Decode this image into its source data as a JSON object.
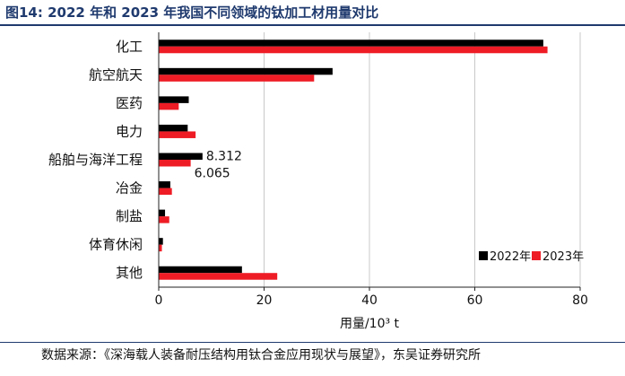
{
  "figure": {
    "title": "图14:  2022 年和 2023 年我国不同领域的钛加工材用量对比",
    "source": "数据来源：《深海载人装备耐压结构用钛合金应用现状与展望》，东吴证券研究所"
  },
  "chart_data": {
    "type": "bar",
    "orientation": "horizontal",
    "categories": [
      "化工",
      "航空航天",
      "医药",
      "电力",
      "船舶与海洋工程",
      "冶金",
      "制盐",
      "体育休闲",
      "其他"
    ],
    "series": [
      {
        "name": "2022年",
        "color": "#000000",
        "values": [
          73,
          33,
          5.7,
          5.5,
          8.312,
          2.2,
          1.2,
          0.8,
          15.8
        ]
      },
      {
        "name": "2023年",
        "color": "#ee1c25",
        "values": [
          73.8,
          29.5,
          3.8,
          7.0,
          6.065,
          2.5,
          2.0,
          0.6,
          22.5
        ]
      }
    ],
    "data_labels": [
      {
        "category": "船舶与海洋工程",
        "series": "2022年",
        "text": "8.312"
      },
      {
        "category": "船舶与海洋工程",
        "series": "2023年",
        "text": "6.065"
      }
    ],
    "xlabel": "用量/10³ t",
    "ylabel": "",
    "xlim": [
      0,
      80
    ],
    "xticks": [
      "0",
      "20",
      "40",
      "60",
      "80"
    ],
    "grid": "vertical",
    "legend": "bottom-right"
  }
}
